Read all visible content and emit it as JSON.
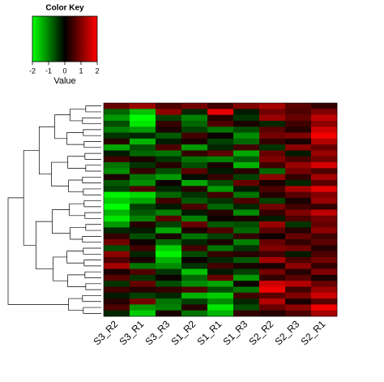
{
  "chart_data": {
    "type": "heatmap",
    "key_title": "Color Key",
    "key_label": "Value",
    "zlim": [
      -2,
      2
    ],
    "key_ticks": [
      -2,
      -1,
      0,
      1,
      2
    ],
    "colormap": [
      "#00ff00",
      "#000000",
      "#ff0000"
    ],
    "categories": [
      "S3_R2",
      "S3_R1",
      "S3_R3",
      "S1_R2",
      "S1_R1",
      "S1_R3",
      "S2_R2",
      "S2_R3",
      "S2_R1"
    ],
    "values": [
      [
        0.8,
        1.2,
        0.6,
        0.9,
        0.5,
        1.0,
        1.3,
        0.7,
        0.4
      ],
      [
        -0.8,
        -1.5,
        1.1,
        -0.3,
        1.8,
        -0.2,
        0.9,
        0.6,
        1.0
      ],
      [
        -1.2,
        -2.0,
        -0.5,
        -1.0,
        0.3,
        -0.4,
        1.2,
        0.8,
        1.5
      ],
      [
        -0.6,
        -1.8,
        0.4,
        -0.8,
        0.6,
        0.2,
        -0.3,
        0.5,
        1.1
      ],
      [
        -1.0,
        -1.2,
        0.2,
        -0.5,
        -0.9,
        -0.6,
        0.7,
        0.3,
        1.6
      ],
      [
        -0.4,
        -0.3,
        -0.7,
        0.5,
        0.1,
        -1.1,
        0.9,
        1.0,
        1.9
      ],
      [
        0.3,
        -1.4,
        -0.2,
        0.2,
        -0.5,
        -0.8,
        0.4,
        0.2,
        1.4
      ],
      [
        -1.3,
        -0.6,
        0.6,
        -1.2,
        -0.3,
        0.5,
        -0.4,
        1.1,
        0.8
      ],
      [
        -0.2,
        -0.8,
        -0.9,
        0.4,
        0.7,
        -1.3,
        0.8,
        -0.2,
        1.2
      ],
      [
        0.5,
        0.2,
        -0.4,
        -0.9,
        -1.0,
        -0.7,
        1.0,
        0.6,
        0.9
      ],
      [
        -0.9,
        -0.4,
        0.3,
        -0.6,
        0.2,
        -1.4,
        0.5,
        1.2,
        1.7
      ],
      [
        -1.1,
        0.4,
        -0.6,
        0.7,
        -0.2,
        0.3,
        -0.8,
        0.9,
        0.6
      ],
      [
        0.2,
        -0.9,
        -1.2,
        -0.1,
        0.4,
        -0.5,
        1.1,
        0.4,
        1.3
      ],
      [
        -0.7,
        -1.1,
        0.1,
        -1.3,
        -0.6,
        0.8,
        0.2,
        -0.3,
        0.7
      ],
      [
        -0.5,
        0.6,
        -0.3,
        0.3,
        -1.2,
        -0.2,
        0.6,
        1.3,
        1.8
      ],
      [
        -1.9,
        -1.7,
        -0.8,
        -0.4,
        0.5,
        -0.9,
        0.3,
        0.7,
        1.0
      ],
      [
        -1.6,
        -1.3,
        0.5,
        -0.7,
        -0.4,
        0.6,
        -0.5,
        0.2,
        1.2
      ],
      [
        -2.0,
        -0.5,
        -0.2,
        0.6,
        -0.8,
        -0.3,
        0.9,
        0.5,
        0.4
      ],
      [
        -1.4,
        -0.7,
        -1.0,
        -0.2,
        0.3,
        -1.1,
        0.4,
        1.0,
        1.5
      ],
      [
        -1.8,
        -1.0,
        0.7,
        -1.0,
        0.1,
        0.2,
        -0.2,
        0.6,
        0.9
      ],
      [
        -1.2,
        0.3,
        -0.5,
        0.8,
        -0.7,
        -0.6,
        1.2,
        -0.4,
        0.8
      ],
      [
        -0.3,
        -0.2,
        -1.3,
        0.2,
        0.6,
        -0.8,
        0.7,
        0.3,
        1.1
      ],
      [
        0.4,
        -0.6,
        0.2,
        -0.9,
        -0.5,
        0.4,
        0.1,
        0.8,
        0.5
      ],
      [
        0.9,
        0.1,
        -0.8,
        -0.3,
        0.2,
        -1.0,
        0.8,
        0.4,
        0.7
      ],
      [
        -0.6,
        0.5,
        -1.6,
        0.5,
        -0.9,
        -0.4,
        1.0,
        0.9,
        0.3
      ],
      [
        1.1,
        -0.3,
        -1.9,
        -0.6,
        0.4,
        0.3,
        0.5,
        -0.2,
        0.6
      ],
      [
        0.6,
        0.2,
        -1.4,
        0.1,
        -0.3,
        -0.7,
        1.3,
        0.6,
        0.9
      ],
      [
        1.3,
        -0.9,
        -1.1,
        -0.4,
        0.5,
        0.2,
        0.2,
        1.1,
        0.4
      ],
      [
        0.2,
        0.6,
        -0.4,
        -1.5,
        -0.2,
        -0.5,
        0.9,
        0.3,
        1.0
      ],
      [
        0.7,
        -0.4,
        0.1,
        -0.8,
        0.8,
        -1.2,
        0.4,
        0.7,
        0.2
      ],
      [
        -0.4,
        0.8,
        -0.6,
        -1.1,
        -1.3,
        0.1,
        1.6,
        1.4,
        0.8
      ],
      [
        0.5,
        0.3,
        0.4,
        0.6,
        -0.6,
        -0.9,
        1.9,
        0.5,
        1.2
      ],
      [
        -0.2,
        -0.5,
        -0.3,
        -1.4,
        -1.6,
        0.5,
        0.7,
        1.0,
        1.6
      ],
      [
        0.3,
        0.9,
        -0.9,
        -0.5,
        -1.1,
        -0.3,
        1.4,
        0.2,
        0.7
      ],
      [
        0.6,
        -1.2,
        -1.0,
        0.3,
        -1.8,
        -0.6,
        0.8,
        1.1,
        1.9
      ],
      [
        -0.3,
        -1.6,
        0.2,
        -0.9,
        -1.4,
        0.4,
        0.3,
        0.6,
        1.3
      ]
    ]
  }
}
